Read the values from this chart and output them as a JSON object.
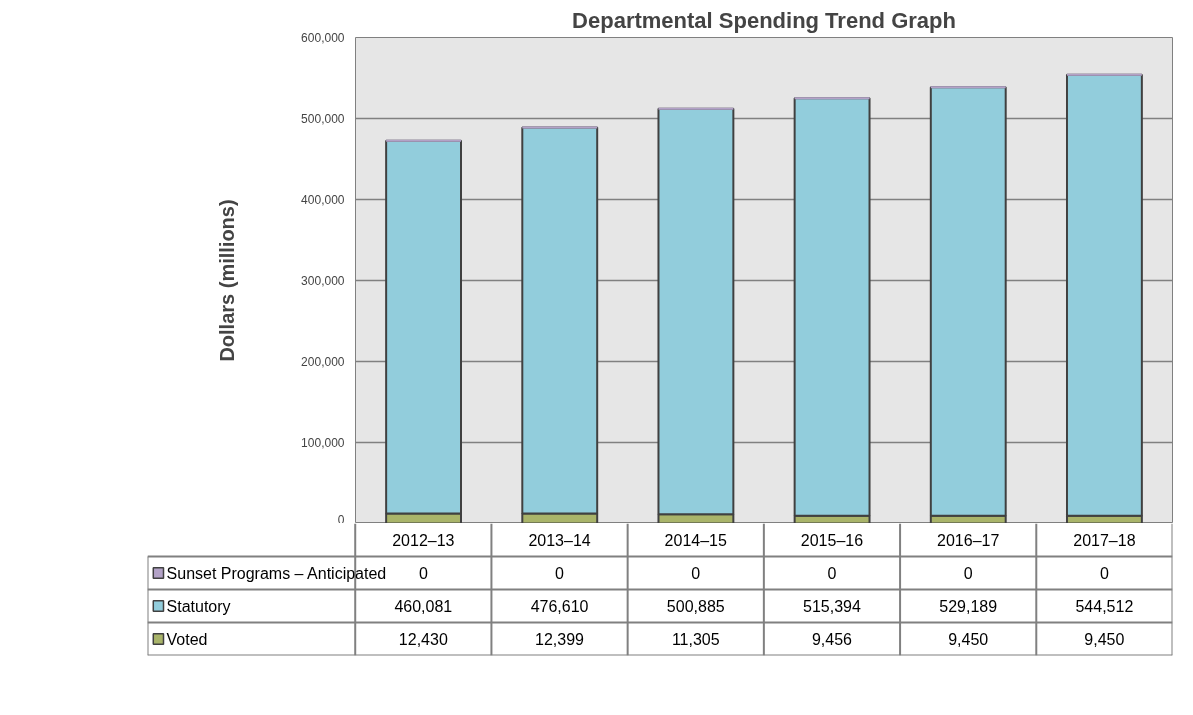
{
  "chart_data": {
    "type": "bar",
    "title": "Departmental Spending Trend Graph",
    "ylabel": "Dollars (millions)",
    "categories": [
      "2012–13",
      "2013–14",
      "2014–15",
      "2015–16",
      "2016–17",
      "2017–18"
    ],
    "stacked": true,
    "grid": "y",
    "legend": "bottom left",
    "ylim": [
      0,
      600000
    ],
    "yticks": [
      {
        "value": 0,
        "label": "0"
      },
      {
        "value": 100000,
        "label": "100,000"
      },
      {
        "value": 200000,
        "label": "200,000"
      },
      {
        "value": 300000,
        "label": "300,000"
      },
      {
        "value": 400000,
        "label": "400,000"
      },
      {
        "value": 500000,
        "label": "500,000"
      },
      {
        "value": 600000,
        "label": "600,000"
      }
    ],
    "series": [
      {
        "name": "Voted",
        "color": "#a9b46a",
        "values": [
          12430,
          12399,
          11305,
          9456,
          9450,
          9450
        ],
        "value_labels": [
          "12,430",
          "12,399",
          "11,305",
          "9,456",
          "9,450",
          "9,450"
        ]
      },
      {
        "name": "Statutory",
        "color": "#92cddc",
        "values": [
          460081,
          476610,
          500885,
          515394,
          529189,
          544512
        ],
        "value_labels": [
          "460,081",
          "476,610",
          "500,885",
          "515,394",
          "529,189",
          "544,512"
        ]
      },
      {
        "name": "Sunset Programs – Anticipated",
        "color": "#b3a2c7",
        "values": [
          0,
          0,
          0,
          0,
          0,
          0
        ],
        "value_labels": [
          "0",
          "0",
          "0",
          "0",
          "0",
          "0"
        ]
      }
    ]
  }
}
